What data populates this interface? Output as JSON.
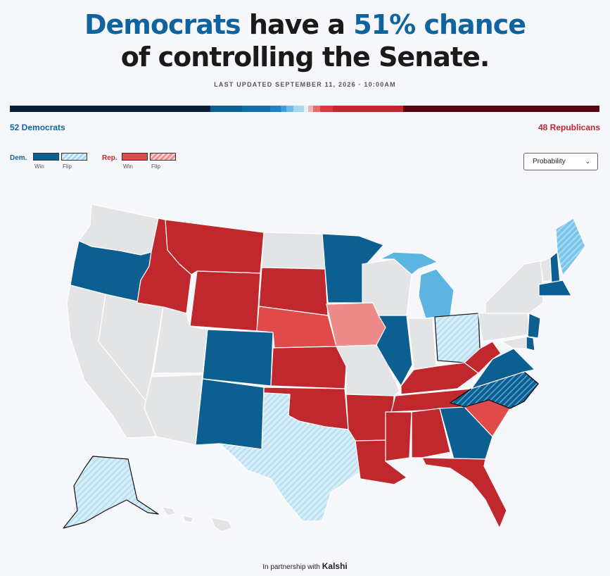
{
  "headline": {
    "line1_a": "Democrats",
    "line1_b": " have a ",
    "line1_c": "51% chance",
    "line2": "of controlling the Senate."
  },
  "updated": "LAST UPDATED SEPTEMBER 11, 2026 · 10:00AM",
  "totals": {
    "dem": "52 Democrats",
    "rep": "48 Republicans"
  },
  "legend": {
    "dem_label": "Dem.",
    "rep_label": "Rep.",
    "win": "Win",
    "flip": "Flip"
  },
  "view_select": {
    "value": "Probability"
  },
  "footer": {
    "prefix": "In partnership with",
    "brand": "Kalshi"
  },
  "colors": {
    "dem_win": "#0d5f92",
    "dem_flip": "#d9eef8",
    "dem_lean": "#5cb5e0",
    "rep_win": "#c1282e",
    "rep_lean": "#e04a4a",
    "rep_tilt": "#ee8a8a",
    "no_race": "#e3e4e6"
  },
  "states": [
    {
      "id": "WA",
      "category": "no-race"
    },
    {
      "id": "OR",
      "category": "dem-win"
    },
    {
      "id": "CA",
      "category": "no-race"
    },
    {
      "id": "NV",
      "category": "no-race"
    },
    {
      "id": "ID",
      "category": "rep-win"
    },
    {
      "id": "MT",
      "category": "rep-win"
    },
    {
      "id": "WY",
      "category": "rep-win"
    },
    {
      "id": "UT",
      "category": "no-race"
    },
    {
      "id": "AZ",
      "category": "no-race"
    },
    {
      "id": "CO",
      "category": "dem-win"
    },
    {
      "id": "NM",
      "category": "dem-win"
    },
    {
      "id": "ND",
      "category": "no-race"
    },
    {
      "id": "SD",
      "category": "rep-win"
    },
    {
      "id": "NE",
      "category": "rep-lean"
    },
    {
      "id": "KS",
      "category": "rep-win"
    },
    {
      "id": "OK",
      "category": "rep-win"
    },
    {
      "id": "TX",
      "category": "dem-flip"
    },
    {
      "id": "MN",
      "category": "dem-win"
    },
    {
      "id": "IA",
      "category": "rep-tilt"
    },
    {
      "id": "MO",
      "category": "no-race"
    },
    {
      "id": "AR",
      "category": "rep-win"
    },
    {
      "id": "LA",
      "category": "rep-win"
    },
    {
      "id": "WI",
      "category": "no-race"
    },
    {
      "id": "IL",
      "category": "dem-win"
    },
    {
      "id": "MI",
      "category": "dem-lean"
    },
    {
      "id": "IN",
      "category": "no-race"
    },
    {
      "id": "OH",
      "category": "dem-flip"
    },
    {
      "id": "KY",
      "category": "rep-win"
    },
    {
      "id": "TN",
      "category": "rep-win"
    },
    {
      "id": "MS",
      "category": "rep-win"
    },
    {
      "id": "AL",
      "category": "rep-win"
    },
    {
      "id": "GA",
      "category": "dem-win"
    },
    {
      "id": "FL",
      "category": "rep-win"
    },
    {
      "id": "SC",
      "category": "rep-lean"
    },
    {
      "id": "NC",
      "category": "dem-flip-strong"
    },
    {
      "id": "VA",
      "category": "dem-win"
    },
    {
      "id": "WV",
      "category": "rep-win"
    },
    {
      "id": "PA",
      "category": "no-race"
    },
    {
      "id": "NY",
      "category": "no-race"
    },
    {
      "id": "NJ",
      "category": "dem-win"
    },
    {
      "id": "DE",
      "category": "dem-win"
    },
    {
      "id": "MD",
      "category": "no-race"
    },
    {
      "id": "VT",
      "category": "no-race"
    },
    {
      "id": "NH",
      "category": "dem-win"
    },
    {
      "id": "ME",
      "category": "dem-flip-lean"
    },
    {
      "id": "MA",
      "category": "dem-win"
    },
    {
      "id": "AK",
      "category": "dem-flip"
    },
    {
      "id": "HI",
      "category": "no-race"
    }
  ]
}
